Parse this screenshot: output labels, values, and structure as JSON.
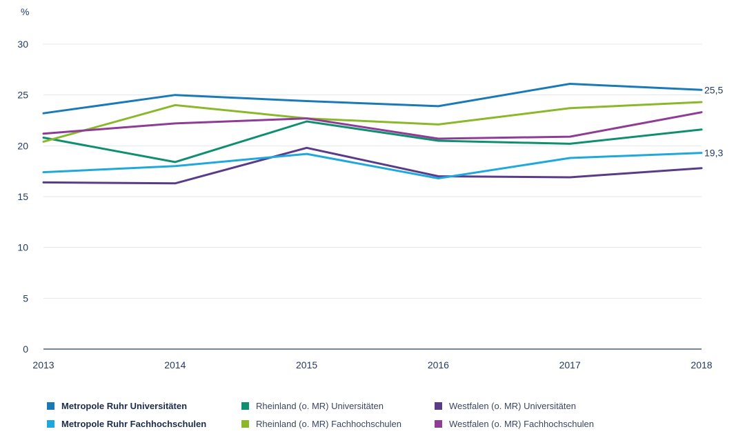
{
  "chart_data": {
    "type": "line",
    "y_unit_label": "%",
    "x": [
      "2013",
      "2014",
      "2015",
      "2016",
      "2017",
      "2018"
    ],
    "ylim": [
      0,
      30
    ],
    "yticks": [
      0,
      5,
      10,
      15,
      20,
      25,
      30
    ],
    "grid": true,
    "legend_position": "bottom",
    "series": [
      {
        "name": "Metropole Ruhr Universitäten",
        "color": "#1a7ab8",
        "values": [
          23.2,
          25.0,
          24.4,
          23.9,
          26.1,
          25.5
        ],
        "end_label": "25,5"
      },
      {
        "name": "Rheinland (o. MR) Universitäten",
        "color": "#0f8f6f",
        "values": [
          20.8,
          18.4,
          22.4,
          20.5,
          20.2,
          21.6
        ]
      },
      {
        "name": "Westfalen (o. MR) Universitäten",
        "color": "#5a3b8a",
        "values": [
          16.4,
          16.3,
          19.8,
          17.0,
          16.9,
          17.8
        ]
      },
      {
        "name": "Metropole Ruhr Fachhochschulen",
        "color": "#1ea8dc",
        "values": [
          17.4,
          18.0,
          19.2,
          16.8,
          18.8,
          19.3
        ],
        "end_label": "19,3"
      },
      {
        "name": "Rheinland (o. MR) Fachhochschulen",
        "color": "#8ab82a",
        "values": [
          20.4,
          24.0,
          22.7,
          22.1,
          23.7,
          24.3
        ]
      },
      {
        "name": "Westfalen (o. MR) Fachhochschulen",
        "color": "#8e3c95",
        "values": [
          21.2,
          22.2,
          22.7,
          20.7,
          20.9,
          23.3
        ]
      }
    ]
  },
  "legend": [
    {
      "label": "Metropole Ruhr Universitäten",
      "color": "#1a7ab8",
      "bold": true
    },
    {
      "label": "Rheinland (o. MR) Universitäten",
      "color": "#0f8f6f",
      "bold": false
    },
    {
      "label": "Westfalen (o. MR) Universitäten",
      "color": "#5a3b8a",
      "bold": false
    },
    {
      "label": "Metropole Ruhr Fachhochschulen",
      "color": "#1ea8dc",
      "bold": true
    },
    {
      "label": "Rheinland (o. MR) Fachhochschulen",
      "color": "#8ab82a",
      "bold": false
    },
    {
      "label": "Westfalen (o. MR) Fachhochschulen",
      "color": "#8e3c95",
      "bold": false
    }
  ]
}
